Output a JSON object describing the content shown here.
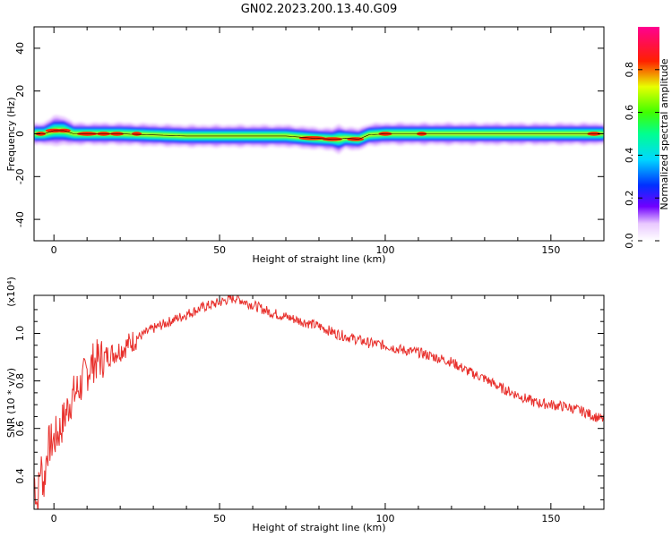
{
  "figure": {
    "title": "GN02.2023.200.13.40.G09"
  },
  "chart_data": [
    {
      "type": "heatmap",
      "title": "GN02.2023.200.13.40.G09",
      "xlabel": "Height of straight line (km)",
      "ylabel": "Frequency (Hz)",
      "xlim": [
        -6,
        166
      ],
      "ylim": [
        -50,
        50
      ],
      "xticks": [
        0,
        50,
        100,
        150
      ],
      "yticks": [
        -40,
        -20,
        0,
        20,
        40
      ],
      "colorbar": {
        "label": "Normalized spectral amplitude",
        "range": [
          0.0,
          1.0
        ],
        "ticks": [
          "0.0",
          "0.2",
          "0.4",
          "0.6",
          "0.8"
        ],
        "colormap": "rainbow (white-purple-blue-cyan-green-yellow-red-magenta)"
      },
      "ridge": {
        "x": [
          -6,
          -3,
          0,
          3,
          6,
          10,
          20,
          40,
          60,
          70,
          78,
          84,
          86,
          88,
          92,
          95,
          100,
          120,
          140,
          160,
          166
        ],
        "center_hz": [
          0,
          0,
          1.5,
          1.5,
          0,
          0,
          0,
          -1,
          -1,
          -1,
          -2,
          -2.5,
          -2.5,
          -2,
          -2.5,
          -0.5,
          0,
          0,
          0,
          0,
          0
        ],
        "width_hz": [
          3,
          3,
          4,
          4,
          3,
          3,
          3,
          3,
          3,
          3,
          3,
          3,
          4,
          3,
          3,
          3,
          3,
          3,
          3,
          3,
          3
        ]
      }
    },
    {
      "type": "line",
      "xlabel": "Height of straight line (km)",
      "ylabel": "SNR (10 * v/v)",
      "scale_label": "(x10⁴)",
      "xlim": [
        -6,
        166
      ],
      "ylim": [
        0.26,
        1.16
      ],
      "xticks": [
        0,
        50,
        100,
        150
      ],
      "yticks": [
        0.4,
        0.6,
        0.8,
        1.0
      ],
      "series": [
        {
          "color": "#e8302c",
          "x": [
            -6,
            -5,
            -4,
            -3,
            -2,
            0,
            2,
            5,
            8,
            10,
            12,
            15,
            20,
            25,
            30,
            35,
            40,
            45,
            50,
            52,
            55,
            58,
            60,
            65,
            70,
            75,
            80,
            85,
            90,
            95,
            100,
            105,
            110,
            115,
            120,
            125,
            130,
            135,
            140,
            145,
            150,
            155,
            160,
            165
          ],
          "y": [
            0.4,
            0.28,
            0.45,
            0.36,
            0.52,
            0.55,
            0.6,
            0.72,
            0.78,
            0.84,
            0.88,
            0.9,
            0.93,
            0.98,
            1.02,
            1.05,
            1.08,
            1.11,
            1.13,
            1.14,
            1.15,
            1.13,
            1.12,
            1.09,
            1.07,
            1.05,
            1.03,
            1.0,
            0.98,
            0.96,
            0.95,
            0.93,
            0.92,
            0.9,
            0.88,
            0.84,
            0.81,
            0.77,
            0.74,
            0.71,
            0.7,
            0.69,
            0.67,
            0.64
          ]
        }
      ]
    }
  ]
}
